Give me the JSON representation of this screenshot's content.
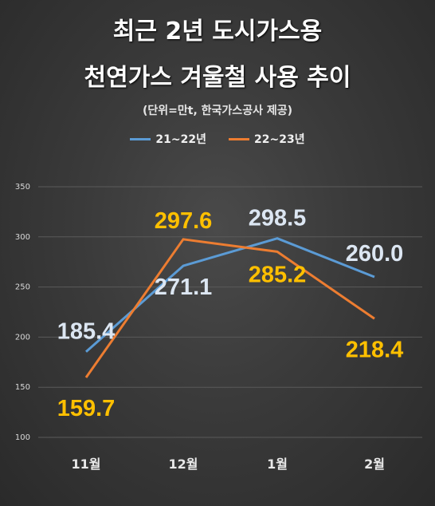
{
  "chart_data": {
    "type": "line",
    "title_line1": "최근 2년 도시가스용",
    "title_line2": "천연가스 겨울철 사용 추이",
    "subtitle": "(단위=만t, 한국가스공사 제공)",
    "categories": [
      "11월",
      "12월",
      "1월",
      "2월"
    ],
    "series": [
      {
        "name": "21~22년",
        "values": [
          185.4,
          271.1,
          298.5,
          260.0
        ],
        "labels": [
          "185.4",
          "271.1",
          "298.5",
          "260.0"
        ],
        "color": "#5b9bd5",
        "label_color": "#dce6f2"
      },
      {
        "name": "22~23년",
        "values": [
          159.7,
          297.6,
          285.2,
          218.4
        ],
        "labels": [
          "159.7",
          "297.6",
          "285.2",
          "218.4"
        ],
        "color": "#ed7d31",
        "label_color": "#ffc000"
      }
    ],
    "y_ticks": [
      "350",
      "300",
      "250",
      "200",
      "150",
      "100"
    ],
    "ylim": [
      100,
      350
    ],
    "legend_position": "top",
    "grid": true
  }
}
